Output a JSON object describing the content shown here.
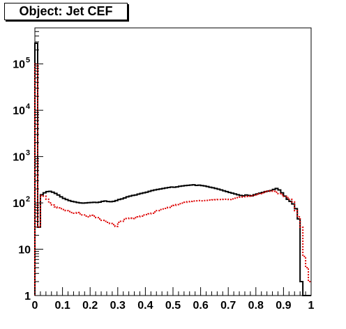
{
  "chart_data": {
    "type": "line",
    "title": "Object: Jet CEF",
    "xlabel": "",
    "ylabel": "",
    "xlim": [
      0,
      1
    ],
    "ylim": [
      1,
      600000
    ],
    "y_scale": "log",
    "grid": false,
    "legend": "none",
    "x_ticks": [
      "0",
      "0.1",
      "0.2",
      "0.3",
      "0.4",
      "0.5",
      "0.6",
      "0.7",
      "0.8",
      "0.9",
      "1"
    ],
    "y_ticks": [
      {
        "base": "1",
        "exp": ""
      },
      {
        "base": "10",
        "exp": ""
      },
      {
        "base": "10",
        "exp": "2"
      },
      {
        "base": "10",
        "exp": "3"
      },
      {
        "base": "10",
        "exp": "4"
      },
      {
        "base": "10",
        "exp": "5"
      }
    ],
    "series": [
      {
        "color": "#000000",
        "style": "solid",
        "bin_width": 0.01,
        "values": [
          280000,
          30,
          150,
          165,
          175,
          178,
          170,
          160,
          148,
          135,
          125,
          118,
          112,
          108,
          105,
          102,
          100,
          99,
          100,
          101,
          102,
          103,
          102,
          104,
          108,
          110,
          107,
          106,
          108,
          112,
          118,
          122,
          128,
          135,
          140,
          145,
          148,
          155,
          160,
          165,
          170,
          178,
          185,
          190,
          195,
          200,
          205,
          210,
          215,
          220,
          218,
          222,
          228,
          232,
          236,
          240,
          243,
          246,
          238,
          242,
          236,
          232,
          225,
          218,
          212,
          205,
          198,
          190,
          182,
          175,
          168,
          162,
          156,
          150,
          145,
          142,
          148,
          145,
          142,
          150,
          156,
          162,
          168,
          175,
          180,
          185,
          195,
          205,
          190,
          165,
          140,
          120,
          108,
          95,
          75,
          45,
          2,
          1,
          1,
          1
        ]
      },
      {
        "color": "#dd0000",
        "style": "dotted",
        "bin_width": 0.01,
        "values": [
          100000,
          30,
          145,
          140,
          120,
          100,
          90,
          82,
          78,
          75,
          72,
          68,
          65,
          62,
          60,
          62,
          58,
          55,
          52,
          50,
          54,
          52,
          48,
          45,
          42,
          40,
          38,
          36,
          34,
          31,
          38,
          40,
          44,
          46,
          47,
          46,
          48,
          50,
          52,
          55,
          56,
          58,
          60,
          64,
          68,
          72,
          74,
          76,
          80,
          85,
          88,
          92,
          96,
          99,
          103,
          106,
          108,
          110,
          111,
          112,
          111,
          112,
          113,
          115,
          116,
          117,
          118,
          118,
          119,
          120,
          118,
          122,
          126,
          130,
          133,
          136,
          138,
          140,
          143,
          146,
          150,
          158,
          165,
          172,
          178,
          182,
          178,
          170,
          158,
          150,
          138,
          130,
          120,
          105,
          68,
          50,
          30,
          7,
          4,
          2
        ]
      }
    ]
  }
}
